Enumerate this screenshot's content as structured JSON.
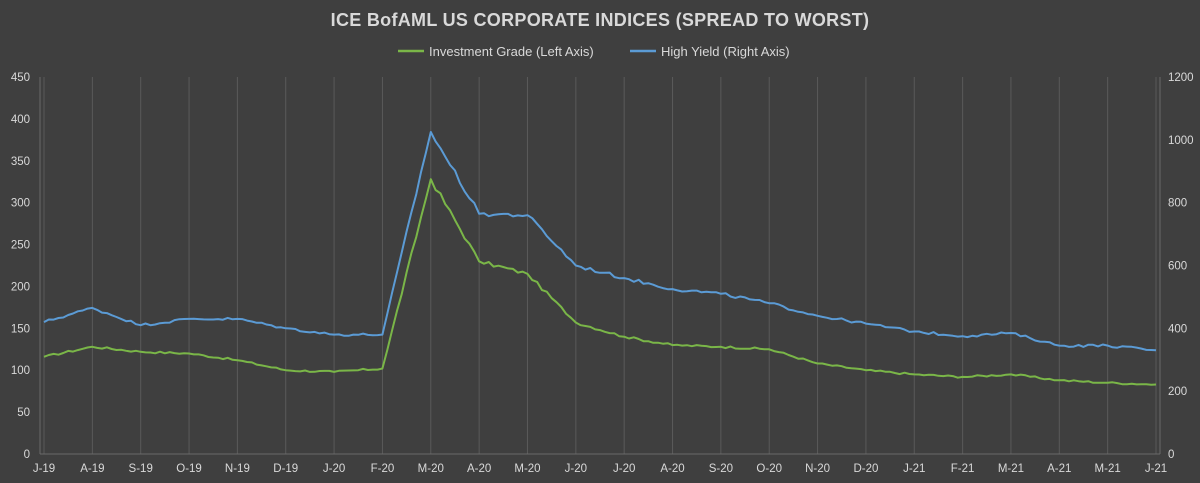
{
  "chart_data": {
    "type": "line",
    "title": "ICE BofAML US CORPORATE INDICES (SPREAD TO WORST)",
    "xlabel": "",
    "ylabel": "",
    "x": [
      "J-19",
      "A-19",
      "S-19",
      "O-19",
      "N-19",
      "D-19",
      "J-20",
      "F-20",
      "M-20",
      "A-20",
      "M-20",
      "J-20",
      "J-20",
      "A-20",
      "S-20",
      "O-20",
      "N-20",
      "D-20",
      "J-21",
      "F-21",
      "M-21",
      "A-21",
      "M-21",
      "J-21"
    ],
    "ylim": [
      0,
      450
    ],
    "ylim_right": [
      0,
      1200
    ],
    "yticks": [
      "0",
      "50",
      "100",
      "150",
      "200",
      "250",
      "300",
      "350",
      "400",
      "450"
    ],
    "yticks_right": [
      "0",
      "200",
      "400",
      "600",
      "800",
      "1000",
      "1200"
    ],
    "grid": "vertical",
    "legend_position": "top",
    "series": [
      {
        "name": "Investment Grade (Left Axis)",
        "axis": "left",
        "color": "#7ab648",
        "values": [
          116,
          128,
          122,
          120,
          112,
          100,
          98,
          102,
          328,
          230,
          215,
          157,
          140,
          130,
          128,
          125,
          108,
          100,
          95,
          92,
          95,
          88,
          85,
          83
        ]
      },
      {
        "name": "High Yield (Right Axis)",
        "axis": "right",
        "color": "#5b9bd5",
        "values": [
          420,
          465,
          410,
          430,
          430,
          400,
          380,
          380,
          1025,
          765,
          760,
          600,
          560,
          525,
          510,
          480,
          440,
          415,
          390,
          375,
          385,
          345,
          345,
          330
        ]
      }
    ]
  }
}
